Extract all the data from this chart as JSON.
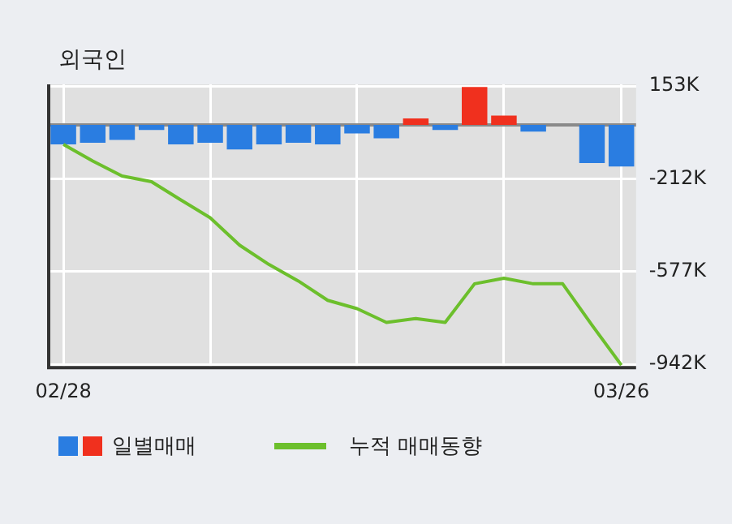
{
  "chart_data": {
    "type": "bar",
    "title": "외국인",
    "categories": [
      "02/28",
      null,
      null,
      null,
      null,
      null,
      null,
      null,
      null,
      null,
      null,
      null,
      null,
      null,
      null,
      null,
      null,
      null,
      null,
      "03/26"
    ],
    "series": [
      {
        "name": "일별매매",
        "colors": [
          "#2a7de1",
          "#2a7de1",
          "#2a7de1",
          "#2a7de1",
          "#2a7de1",
          "#2a7de1",
          "#2a7de1",
          "#2a7de1",
          "#2a7de1",
          "#2a7de1",
          "#2a7de1",
          "#2a7de1",
          "#f0301e",
          "#2a7de1",
          "#f0301e",
          "#f0301e",
          "#2a7de1",
          "#2a7de1",
          "#2a7de1",
          "#2a7de1"
        ],
        "values": [
          -76000,
          -70000,
          -59000,
          -20000,
          -76000,
          -70000,
          -96000,
          -76000,
          -70000,
          -76000,
          -33000,
          -52000,
          26000,
          -20000,
          150000,
          37000,
          -26000,
          0,
          -150000,
          -163000
        ]
      },
      {
        "name": "누적 매매동향",
        "type": "line",
        "color": "#6cbf2c",
        "values": [
          -76000,
          -142000,
          -201000,
          -223000,
          -295000,
          -365000,
          -473000,
          -549000,
          -614000,
          -690000,
          -723000,
          -777000,
          -762000,
          -777000,
          -625000,
          -603000,
          -625000,
          -625000,
          -788000,
          -945000
        ]
      }
    ],
    "ylim": [
      -955000,
      160000
    ],
    "yticks": [
      {
        "value": 153000,
        "label": "153K"
      },
      {
        "value": -212000,
        "label": "-212K"
      },
      {
        "value": -577000,
        "label": "-577K"
      },
      {
        "value": -942000,
        "label": "-942K"
      }
    ],
    "grid": true,
    "legend": "bottom",
    "marker": "none"
  }
}
